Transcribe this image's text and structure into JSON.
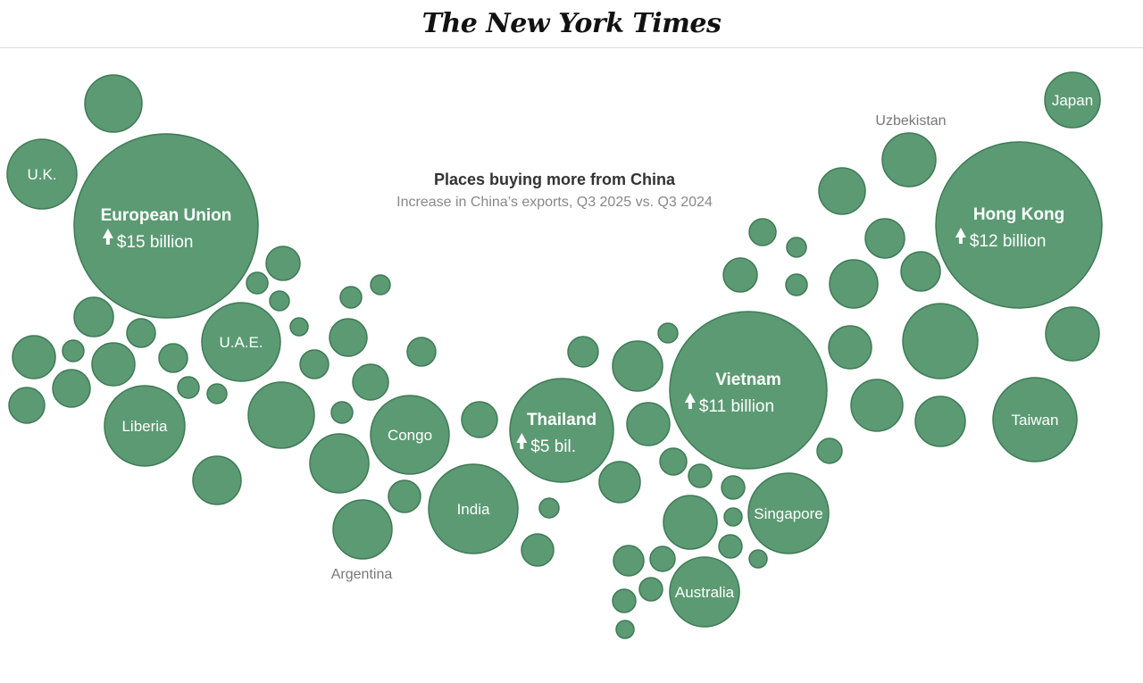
{
  "header": {
    "logo_text": "The New York Times"
  },
  "chart_data": {
    "type": "bubble",
    "title": "Places buying more from China",
    "subtitle": "Increase in China’s exports, Q3 2025 vs. Q3 2024",
    "colors": {
      "bubble": "#5b9a73",
      "stroke": "#3f7a56",
      "text": "#ffffff",
      "outside_label": "#777777"
    },
    "labeled_bubbles": [
      {
        "name": "European Union",
        "value_label": "$15 billion",
        "increase_billion": 15
      },
      {
        "name": "Hong Kong",
        "value_label": "$12 billion",
        "increase_billion": 12
      },
      {
        "name": "Vietnam",
        "value_label": "$11 billion",
        "increase_billion": 11
      },
      {
        "name": "Thailand",
        "value_label": "$5 bil.",
        "increase_billion": 5
      },
      {
        "name": "U.K."
      },
      {
        "name": "U.A.E."
      },
      {
        "name": "Liberia"
      },
      {
        "name": "Congo"
      },
      {
        "name": "India"
      },
      {
        "name": "Singapore"
      },
      {
        "name": "Australia"
      },
      {
        "name": "Taiwan"
      },
      {
        "name": "Japan"
      },
      {
        "name": "Argentina"
      },
      {
        "name": "Uzbekistan"
      }
    ],
    "unlabeled_bubble_count": 58
  }
}
